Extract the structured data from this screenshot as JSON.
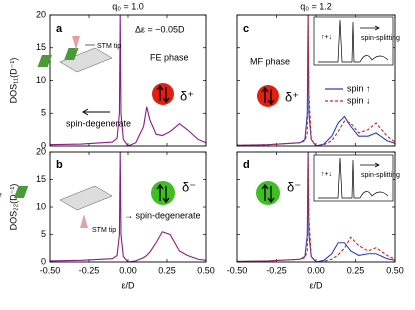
{
  "chart_data": [
    {
      "type": "line",
      "title": "q₀ = 1.0",
      "ylabel": "DOS₁₁(D⁻¹)",
      "panel_label": "a",
      "annotations": [
        "Δε = −0.05D",
        "FE phase",
        "δ⁺",
        "STM tip",
        "spin-degenerate"
      ],
      "x": [
        -0.5,
        -0.3,
        -0.1,
        -0.07,
        -0.055,
        -0.05,
        -0.045,
        -0.03,
        0,
        0.05,
        0.1,
        0.12,
        0.14,
        0.18,
        0.22,
        0.27,
        0.33,
        0.38,
        0.45,
        0.5
      ],
      "values": [
        0.2,
        0.3,
        0.6,
        1.2,
        5,
        20,
        5,
        1,
        0,
        0.5,
        3,
        6,
        4,
        1.8,
        1.6,
        2.2,
        3.4,
        2.5,
        1,
        0.5
      ],
      "color": "#8b1a8b",
      "xlim": [
        -0.5,
        0.5
      ],
      "xticks": [
        -0.5,
        -0.25,
        0,
        0.25,
        0.5
      ],
      "ylim": [
        0,
        20
      ],
      "yticks": [
        0,
        5,
        10,
        15,
        20
      ]
    },
    {
      "type": "line",
      "title": "q₀ = 1.2",
      "panel_label": "c",
      "annotations": [
        "MF phase",
        "δ⁺",
        "↑+↓",
        "spin-splitting"
      ],
      "x": [
        -0.5,
        -0.3,
        -0.1,
        -0.07,
        -0.055,
        -0.05,
        -0.045,
        -0.03,
        0,
        0.05,
        0.1,
        0.12,
        0.14,
        0.18,
        0.22,
        0.27,
        0.33,
        0.38,
        0.45,
        0.5
      ],
      "series": [
        {
          "name": "spin ↑",
          "color": "#2a3fc0",
          "dash": false,
          "values": [
            0.1,
            0.2,
            0.5,
            1,
            5,
            20,
            5,
            1,
            0,
            0.3,
            1.5,
            2.5,
            3.5,
            4.5,
            3,
            1.5,
            1.5,
            2,
            0.8,
            0.4
          ]
        },
        {
          "name": "spin ↓",
          "color": "#d62020",
          "dash": true,
          "values": [
            0.1,
            0.2,
            0.5,
            0.8,
            2,
            20,
            8,
            1,
            0,
            0.2,
            0.8,
            1.5,
            2.2,
            3.8,
            3.5,
            2,
            2.5,
            3.5,
            1.5,
            0.6
          ]
        }
      ],
      "xlim": [
        -0.5,
        0.5
      ],
      "xticks": [
        -0.5,
        -0.25,
        0,
        0.25,
        0.5
      ],
      "ylim": [
        0,
        20
      ],
      "yticks": [
        0,
        5,
        10,
        15,
        20
      ]
    },
    {
      "type": "line",
      "ylabel": "DOS₂₂(D⁻¹)",
      "xlabel": "ε/D",
      "panel_label": "b",
      "annotations": [
        "δ⁻",
        "STM tip",
        "→ spin-degenerate"
      ],
      "x": [
        -0.5,
        -0.3,
        -0.1,
        -0.07,
        -0.055,
        -0.05,
        -0.045,
        -0.03,
        0,
        0.05,
        0.1,
        0.12,
        0.14,
        0.18,
        0.22,
        0.27,
        0.33,
        0.38,
        0.45,
        0.5
      ],
      "values": [
        0.2,
        0.3,
        0.6,
        1.2,
        5,
        20,
        5,
        1,
        0,
        0.2,
        0.8,
        1.2,
        1.8,
        3.5,
        5.5,
        5,
        2,
        1.2,
        0.5,
        0.3
      ],
      "color": "#8b1a8b",
      "xlim": [
        -0.5,
        0.5
      ],
      "xticks": [
        {
          "value": -0.5,
          "label": "-0.50"
        },
        {
          "value": -0.25,
          "label": "-0.25"
        },
        {
          "value": 0,
          "label": "0.00"
        },
        {
          "value": 0.25,
          "label": "0.25"
        },
        {
          "value": 0.5,
          "label": "0.50"
        }
      ],
      "ylim": [
        0,
        20
      ],
      "yticks": [
        0,
        5,
        10,
        15,
        20
      ]
    },
    {
      "type": "line",
      "xlabel": "ε/D",
      "panel_label": "d",
      "annotations": [
        "δ⁻",
        "↑+↓",
        "spin-splitting"
      ],
      "x": [
        -0.5,
        -0.3,
        -0.1,
        -0.07,
        -0.055,
        -0.05,
        -0.045,
        -0.03,
        0,
        0.05,
        0.1,
        0.12,
        0.14,
        0.18,
        0.22,
        0.27,
        0.33,
        0.38,
        0.45,
        0.5
      ],
      "series": [
        {
          "color": "#2a3fc0",
          "dash": false,
          "values": [
            0.1,
            0.2,
            0.5,
            1,
            5,
            20,
            5,
            1,
            0,
            0.3,
            1.5,
            2.5,
            3.5,
            3.5,
            2,
            1.2,
            1.5,
            1.5,
            0.6,
            0.3
          ]
        },
        {
          "color": "#d62020",
          "dash": true,
          "values": [
            0.1,
            0.2,
            0.5,
            0.8,
            2,
            20,
            8,
            1,
            0,
            0.1,
            0.5,
            0.9,
            1.3,
            2.5,
            4.5,
            3,
            2,
            2.6,
            1.2,
            0.5
          ]
        }
      ],
      "xlim": [
        -0.5,
        0.5
      ],
      "xticks": [
        {
          "value": -0.5,
          "label": "-0.50"
        },
        {
          "value": -0.25,
          "label": "-0.25"
        },
        {
          "value": 0,
          "label": "0.00"
        },
        {
          "value": 0.25,
          "label": "0.25"
        },
        {
          "value": 0.5,
          "label": "0.50"
        }
      ],
      "ylim": [
        0,
        20
      ],
      "yticks": [
        0,
        5,
        10,
        15,
        20
      ]
    }
  ]
}
